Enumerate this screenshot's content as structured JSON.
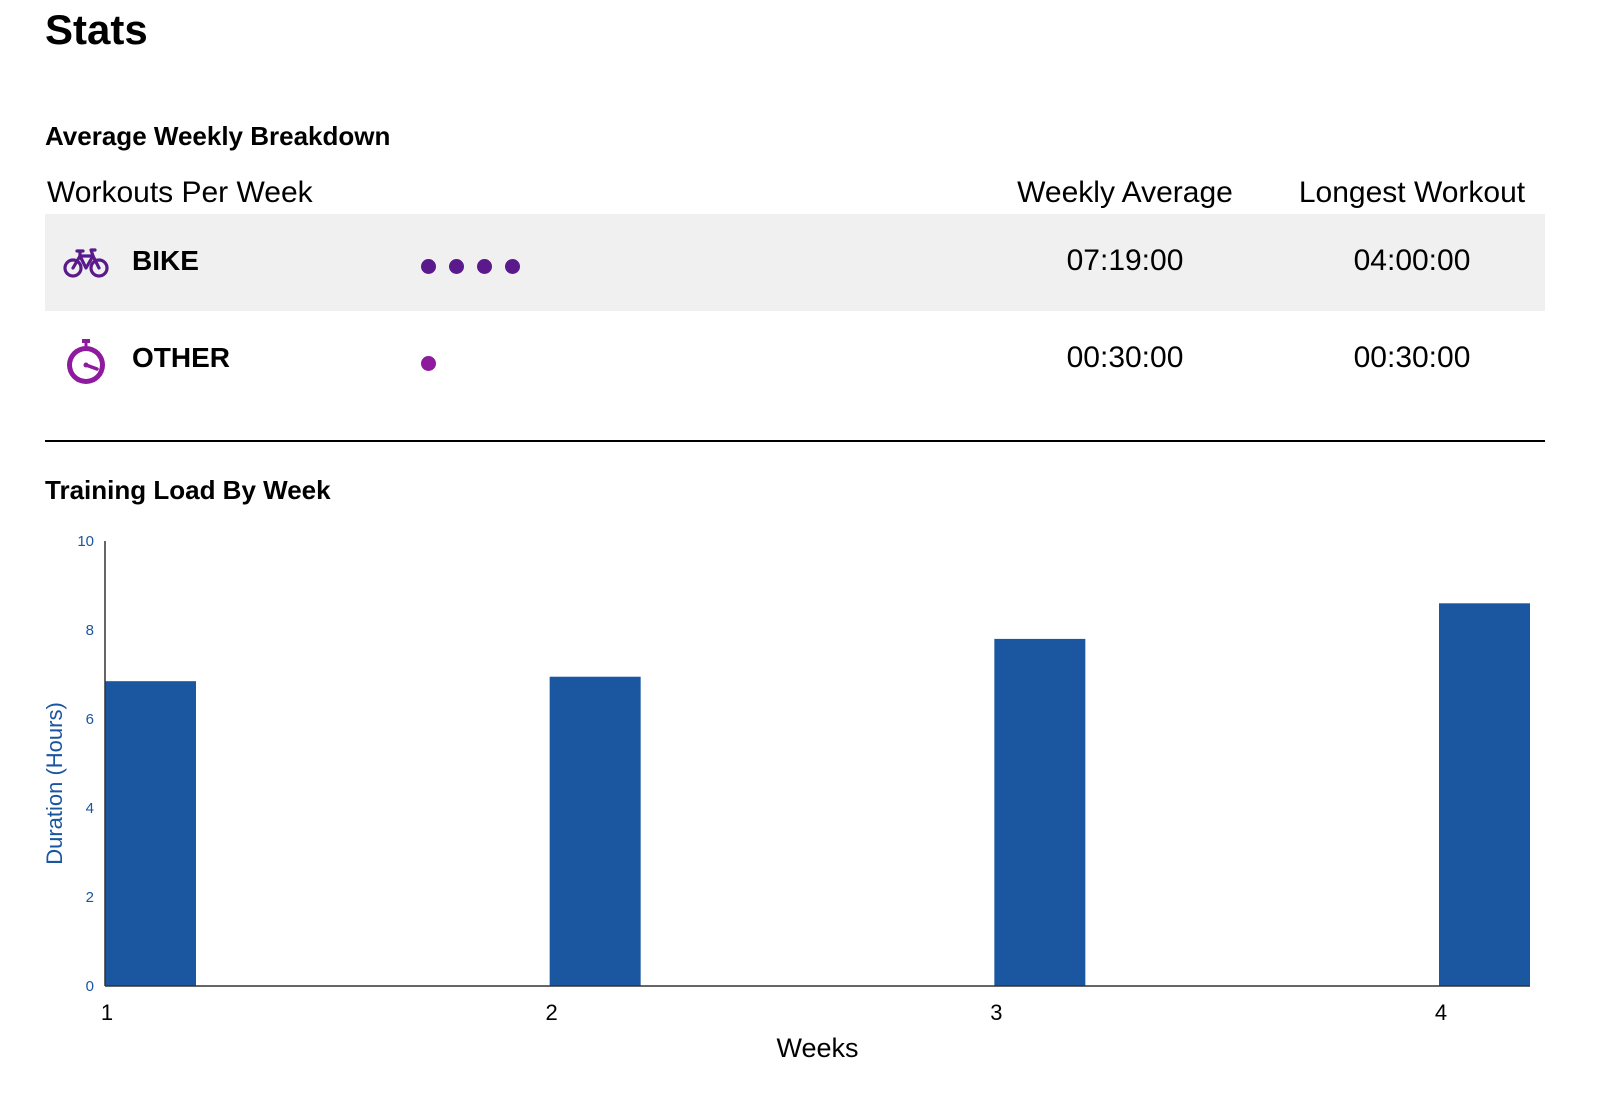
{
  "page": {
    "title": "Stats"
  },
  "breakdown": {
    "title": "Average Weekly Breakdown",
    "headers": {
      "workouts": "Workouts Per Week",
      "weekly_average": "Weekly Average",
      "longest": "Longest Workout"
    },
    "rows": [
      {
        "sport": "BIKE",
        "icon": "bike-icon",
        "workouts_per_week": 4,
        "dot_color": "#5a1a8c",
        "weekly_average": "07:19:00",
        "longest": "04:00:00"
      },
      {
        "sport": "OTHER",
        "icon": "stopwatch-icon",
        "workouts_per_week": 1,
        "dot_color": "#8e1a9e",
        "weekly_average": "00:30:00",
        "longest": "00:30:00"
      }
    ]
  },
  "training_load": {
    "title": "Training Load By Week"
  },
  "chart_data": {
    "type": "bar",
    "categories": [
      "1",
      "2",
      "3",
      "4"
    ],
    "values": [
      6.85,
      6.95,
      7.8,
      8.6
    ],
    "xlabel": "Weeks",
    "ylabel": "Duration (Hours)",
    "ylim": [
      0,
      10
    ],
    "yticks": [
      0,
      2,
      4,
      6,
      8,
      10
    ],
    "bar_color": "#1b57a0",
    "grid": false,
    "legend": "none"
  }
}
